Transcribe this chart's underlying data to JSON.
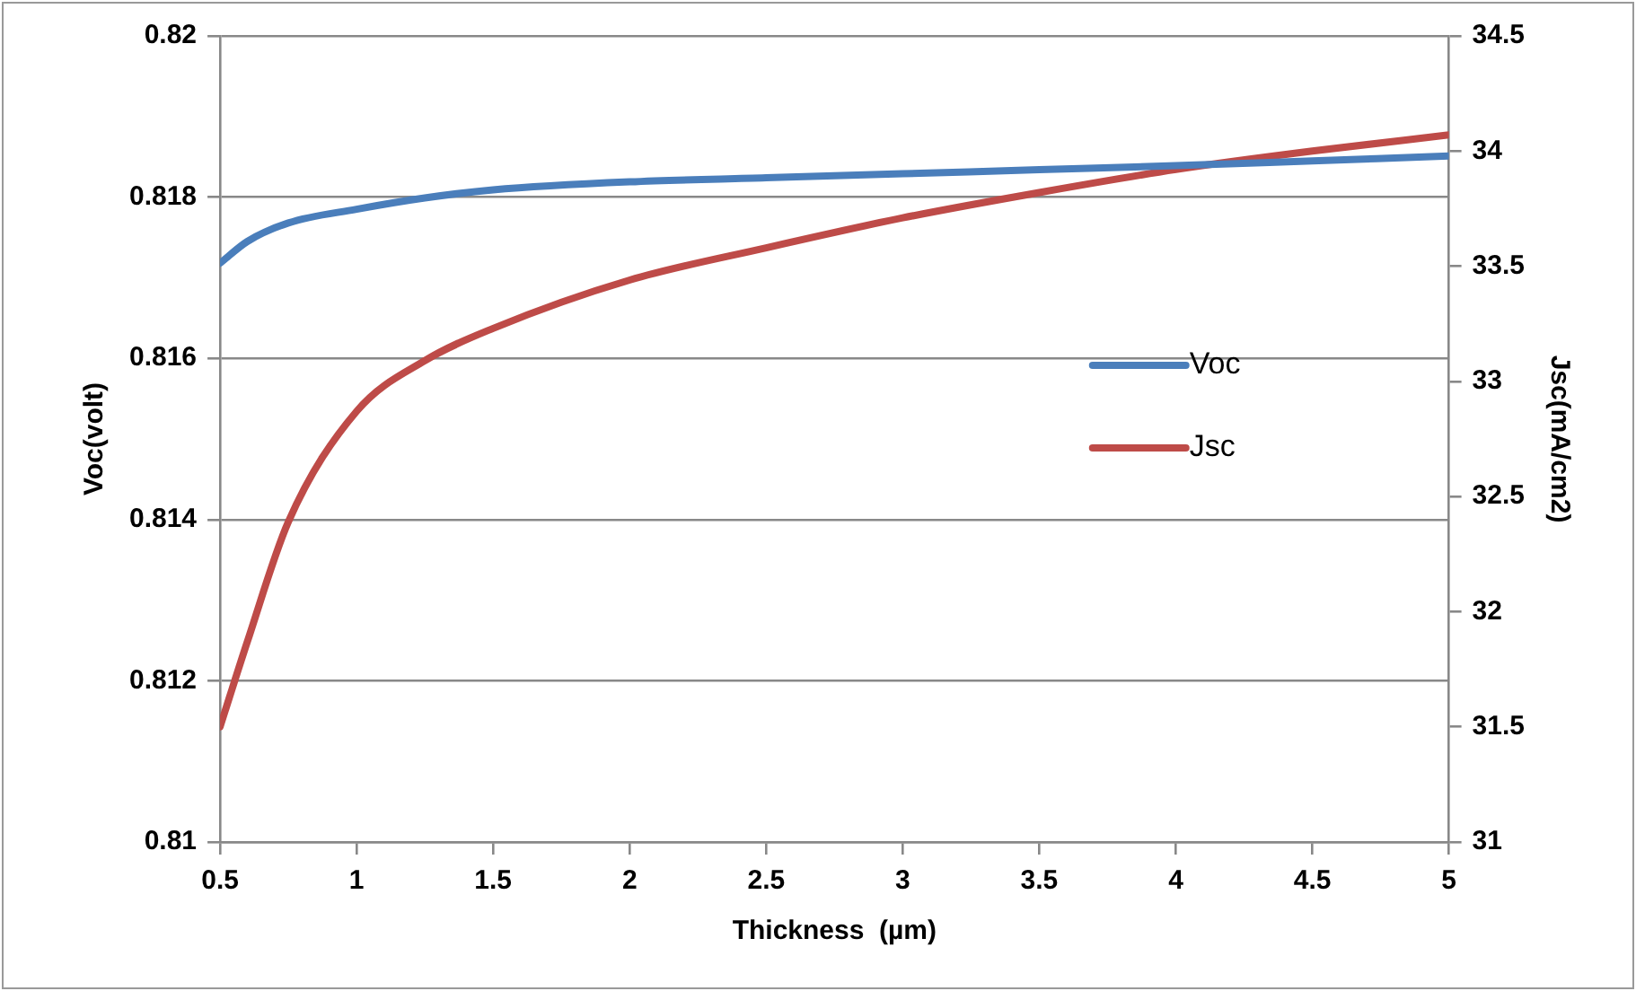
{
  "chart_data": {
    "type": "line",
    "xlabel": "Thickness  (µm)",
    "ylabel": "Voc(volt)",
    "y2label": "Jsc(mA/cm2)",
    "x": [
      0.5,
      0.6,
      0.75,
      1,
      1.25,
      1.5,
      2,
      2.5,
      3,
      3.5,
      4,
      4.5,
      5
    ],
    "series": [
      {
        "name": "Voc",
        "color": "#4a7ebb",
        "values": [
          0.81718,
          0.81745,
          0.81768,
          0.81785,
          0.81799,
          0.81809,
          0.81819,
          0.81824,
          0.81829,
          0.81834,
          0.81839,
          0.81845,
          0.81851
        ]
      },
      {
        "name": "Jsc",
        "color": "#be4b48",
        "axis": "y2",
        "values": [
          31.5,
          31.87,
          32.39,
          32.87,
          33.09,
          33.23,
          33.44,
          33.58,
          33.71,
          33.82,
          33.92,
          34.0,
          34.07
        ]
      }
    ],
    "xlim": [
      0.5,
      5
    ],
    "xticks": [
      0.5,
      1,
      1.5,
      2,
      2.5,
      3,
      3.5,
      4,
      4.5,
      5
    ],
    "ylim": [
      0.81,
      0.82
    ],
    "yticks": [
      0.81,
      0.812,
      0.814,
      0.816,
      0.818,
      0.82
    ],
    "y2lim": [
      31,
      34.5
    ],
    "y2ticks": [
      31,
      31.5,
      32,
      32.5,
      33,
      33.5,
      34,
      34.5
    ],
    "grid": "y",
    "legend": "right",
    "marker": "none",
    "line_style": "solid"
  }
}
